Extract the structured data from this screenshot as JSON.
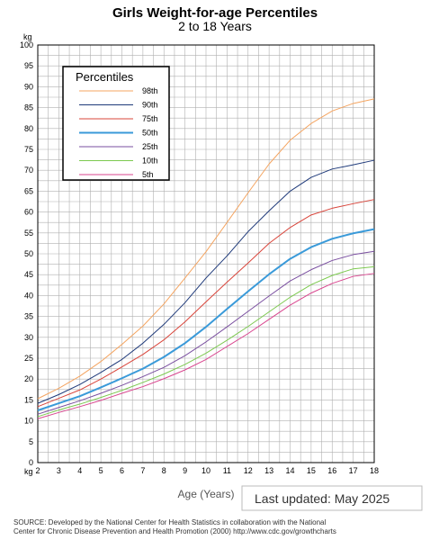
{
  "chart_data": {
    "type": "line",
    "title": "Girls Weight-for-age Percentiles",
    "subtitle": "2 to 18 Years",
    "xlabel": "Age (Years)",
    "ylabel": "kg",
    "xunit_label": "kg",
    "xlim": [
      2,
      18
    ],
    "ylim": [
      0,
      100
    ],
    "x_ticks": [
      2,
      3,
      4,
      5,
      6,
      7,
      8,
      9,
      10,
      11,
      12,
      13,
      14,
      15,
      16,
      17,
      18
    ],
    "y_ticks": [
      0,
      5,
      10,
      15,
      20,
      25,
      30,
      35,
      40,
      45,
      50,
      55,
      60,
      65,
      70,
      75,
      80,
      85,
      90,
      95,
      100
    ],
    "grid": true,
    "legend_title": "Percentiles",
    "legend_position": "top-left",
    "x": [
      2,
      3,
      4,
      5,
      6,
      7,
      8,
      9,
      10,
      11,
      12,
      13,
      14,
      15,
      16,
      17,
      18
    ],
    "series": [
      {
        "name": "98th",
        "color": "#f4a460",
        "width": 1,
        "values": [
          15.3,
          17.8,
          20.7,
          24.2,
          28.3,
          32.7,
          38.0,
          44.2,
          50.5,
          57.5,
          64.6,
          71.5,
          77.2,
          81.2,
          84.2,
          86.0,
          87.1
        ]
      },
      {
        "name": "90th",
        "color": "#1f3a7a",
        "width": 1,
        "values": [
          14.2,
          16.3,
          18.7,
          21.6,
          24.7,
          28.6,
          33.1,
          38.3,
          44.2,
          49.5,
          55.3,
          60.3,
          65.0,
          68.3,
          70.3,
          71.3,
          72.4
        ]
      },
      {
        "name": "75th",
        "color": "#d9443a",
        "width": 1,
        "values": [
          13.4,
          15.4,
          17.4,
          20.0,
          22.9,
          25.9,
          29.4,
          33.7,
          38.5,
          43.2,
          47.8,
          52.5,
          56.3,
          59.3,
          60.9,
          62.0,
          63.0
        ]
      },
      {
        "name": "50th",
        "color": "#3a9ad9",
        "width": 2,
        "values": [
          12.5,
          14.2,
          15.9,
          18.0,
          20.2,
          22.5,
          25.3,
          28.6,
          32.5,
          36.8,
          41.0,
          45.1,
          48.8,
          51.6,
          53.6,
          54.9,
          55.9
        ]
      },
      {
        "name": "25th",
        "color": "#7a4fa0",
        "width": 1,
        "values": [
          11.6,
          13.2,
          14.8,
          16.6,
          18.5,
          20.6,
          22.8,
          25.6,
          28.9,
          32.5,
          36.2,
          39.9,
          43.5,
          46.2,
          48.4,
          49.8,
          50.6
        ]
      },
      {
        "name": "10th",
        "color": "#7cc94f",
        "width": 1,
        "values": [
          11.0,
          12.6,
          14.0,
          15.6,
          17.3,
          19.2,
          21.2,
          23.5,
          26.2,
          29.3,
          32.6,
          36.1,
          39.6,
          42.6,
          44.8,
          46.4,
          46.9
        ]
      },
      {
        "name": "5th",
        "color": "#d9468f",
        "width": 1,
        "values": [
          10.5,
          12.0,
          13.4,
          14.9,
          16.6,
          18.2,
          20.1,
          22.2,
          24.7,
          27.8,
          30.9,
          34.3,
          37.7,
          40.6,
          42.9,
          44.6,
          45.3
        ]
      }
    ],
    "footer": {
      "updated": "Last updated: May 2025",
      "source_line1": "SOURCE: Developed by the National Center for Health Statistics in collaboration with the National",
      "source_line2": "Center for Chronic Disease Prevention and Health Promotion (2000) http://www.cdc.gov/growthcharts"
    }
  }
}
